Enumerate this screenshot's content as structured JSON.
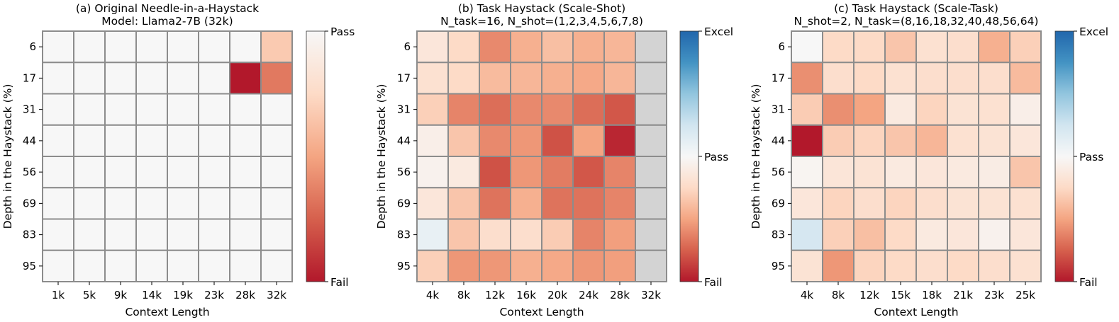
{
  "chart_data": [
    {
      "type": "heatmap",
      "title": "(a) Original Needle-in-a-Haystack",
      "subtitle": "Model: Llama2-7B (32k)",
      "xlabel": "Context Length",
      "ylabel": "Depth in the Haystack (%)",
      "x": [
        "1k",
        "5k",
        "9k",
        "14k",
        "19k",
        "23k",
        "28k",
        "32k"
      ],
      "y": [
        "6",
        "17",
        "31",
        "44",
        "56",
        "69",
        "83",
        "95"
      ],
      "colormap": "reds-to-white",
      "colorbar": {
        "ticks": [
          "Pass",
          "Fail"
        ]
      },
      "values": [
        [
          0,
          0,
          0,
          0,
          0,
          0,
          0,
          0.33
        ],
        [
          0,
          0,
          0,
          0,
          0,
          0,
          1,
          0.66
        ],
        [
          0,
          0,
          0,
          0,
          0,
          0,
          0,
          0
        ],
        [
          0,
          0,
          0,
          0,
          0,
          0,
          0,
          0
        ],
        [
          0,
          0,
          0,
          0,
          0,
          0,
          0,
          0
        ],
        [
          0,
          0,
          0,
          0,
          0,
          0,
          0,
          0
        ],
        [
          0,
          0,
          0,
          0,
          0,
          0,
          0,
          0
        ],
        [
          0,
          0,
          0,
          0,
          0,
          0,
          0,
          0
        ]
      ]
    },
    {
      "type": "heatmap",
      "title": "(b) Task Haystack (Scale-Shot)",
      "subtitle": "N_task=16, N_shot=(1,2,3,4,5,6,7,8)",
      "xlabel": "Context Length",
      "ylabel": "Depth in the Haystack (%)",
      "x": [
        "4k",
        "8k",
        "12k",
        "16k",
        "20k",
        "24k",
        "28k",
        "32k"
      ],
      "y": [
        "6",
        "17",
        "31",
        "44",
        "56",
        "69",
        "83",
        "95"
      ],
      "colormap": "red-white-blue",
      "colorbar": {
        "ticks": [
          "Excel",
          "Pass",
          "Fail"
        ]
      },
      "missing_color": "#d3d3d3",
      "values": [
        [
          -0.15,
          -0.25,
          -0.6,
          -0.45,
          -0.38,
          -0.45,
          -0.42,
          null
        ],
        [
          -0.2,
          -0.25,
          -0.4,
          -0.42,
          -0.45,
          -0.48,
          -0.42,
          null
        ],
        [
          -0.3,
          -0.62,
          -0.7,
          -0.6,
          -0.6,
          -0.7,
          -0.78,
          null
        ],
        [
          -0.08,
          -0.35,
          -0.6,
          -0.55,
          -0.8,
          -0.5,
          -0.95,
          null
        ],
        [
          -0.05,
          -0.12,
          -0.8,
          -0.55,
          -0.65,
          -0.78,
          -0.62,
          null
        ],
        [
          -0.15,
          -0.35,
          -0.68,
          -0.45,
          -0.68,
          -0.68,
          -0.62,
          null
        ],
        [
          0.1,
          -0.35,
          -0.22,
          -0.22,
          -0.32,
          -0.62,
          -0.52,
          null
        ],
        [
          -0.3,
          -0.55,
          -0.55,
          -0.45,
          -0.48,
          -0.55,
          -0.52,
          null
        ]
      ]
    },
    {
      "type": "heatmap",
      "title": "(c) Task Haystack (Scale-Task)",
      "subtitle": "N_shot=2, N_task=(8,16,18,32,40,48,56,64)",
      "xlabel": "Context Length",
      "ylabel": "Depth in the Haystack (%)",
      "x": [
        "4k",
        "8k",
        "12k",
        "15k",
        "18k",
        "21k",
        "23k",
        "25k"
      ],
      "y": [
        "6",
        "17",
        "31",
        "44",
        "56",
        "69",
        "83",
        "95"
      ],
      "colormap": "red-white-blue",
      "colorbar": {
        "ticks": [
          "Excel",
          "Pass",
          "Fail"
        ]
      },
      "values": [
        [
          0.0,
          -0.25,
          -0.25,
          -0.35,
          -0.2,
          -0.22,
          -0.45,
          -0.3
        ],
        [
          -0.58,
          -0.22,
          -0.25,
          -0.2,
          -0.22,
          -0.22,
          -0.22,
          -0.4
        ],
        [
          -0.32,
          -0.58,
          -0.5,
          -0.12,
          -0.28,
          -0.18,
          -0.2,
          -0.08
        ],
        [
          -1.0,
          -0.32,
          -0.28,
          -0.35,
          -0.42,
          -0.2,
          -0.18,
          -0.15
        ],
        [
          -0.03,
          -0.16,
          -0.18,
          -0.12,
          -0.15,
          -0.12,
          -0.1,
          -0.35
        ],
        [
          -0.15,
          -0.28,
          -0.22,
          -0.28,
          -0.22,
          -0.18,
          -0.18,
          -0.2
        ],
        [
          0.22,
          -0.3,
          -0.38,
          -0.25,
          -0.12,
          -0.15,
          -0.05,
          -0.15
        ],
        [
          -0.18,
          -0.55,
          -0.28,
          -0.25,
          -0.22,
          -0.25,
          -0.22,
          -0.2
        ]
      ]
    }
  ]
}
